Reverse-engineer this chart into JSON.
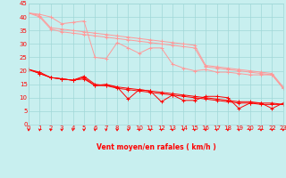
{
  "xlabel": "Vent moyen/en rafales ( km/h )",
  "x_values": [
    0,
    1,
    2,
    3,
    4,
    5,
    6,
    7,
    8,
    9,
    10,
    11,
    12,
    13,
    14,
    15,
    16,
    17,
    18,
    19,
    20,
    21,
    22,
    23
  ],
  "ylim": [
    0,
    45
  ],
  "xlim": [
    0,
    23
  ],
  "yticks": [
    0,
    5,
    10,
    15,
    20,
    25,
    30,
    35,
    40,
    45
  ],
  "background_color": "#c8efef",
  "grid_color": "#a0d8d8",
  "line_color_dark": "#ff0000",
  "line_color_light": "#ff9999",
  "series_dark": [
    [
      20.5,
      19.5,
      17.5,
      17.0,
      16.5,
      18.0,
      15.0,
      14.5,
      14.0,
      9.5,
      13.0,
      12.5,
      8.5,
      11.0,
      9.0,
      9.0,
      10.5,
      10.5,
      10.0,
      6.0,
      8.0,
      8.0,
      6.0,
      8.0
    ],
    [
      20.5,
      19.0,
      17.5,
      17.0,
      16.5,
      17.5,
      14.5,
      15.0,
      14.0,
      13.5,
      13.0,
      12.5,
      12.0,
      11.5,
      11.0,
      10.5,
      10.0,
      9.5,
      9.0,
      8.5,
      8.5,
      8.0,
      8.0,
      7.5
    ],
    [
      20.5,
      19.0,
      17.5,
      17.0,
      16.5,
      17.0,
      14.5,
      14.5,
      13.5,
      13.0,
      12.5,
      12.0,
      11.5,
      11.0,
      10.5,
      10.0,
      9.5,
      9.0,
      8.5,
      8.0,
      8.0,
      7.5,
      7.5,
      7.5
    ]
  ],
  "series_light": [
    [
      41.5,
      41.0,
      40.0,
      37.5,
      38.0,
      38.5,
      25.0,
      24.5,
      30.5,
      28.5,
      26.5,
      28.5,
      28.5,
      22.5,
      21.0,
      20.0,
      20.5,
      19.5,
      19.5,
      19.0,
      18.5,
      18.5,
      18.5,
      13.5
    ],
    [
      41.5,
      40.5,
      36.0,
      35.5,
      35.0,
      34.5,
      34.0,
      33.5,
      33.0,
      32.5,
      32.0,
      31.5,
      31.0,
      30.5,
      30.0,
      29.5,
      22.0,
      21.5,
      21.0,
      20.5,
      20.0,
      19.5,
      19.0,
      14.0
    ],
    [
      41.5,
      40.0,
      35.5,
      34.5,
      34.0,
      33.5,
      33.0,
      32.5,
      32.0,
      31.5,
      31.0,
      30.5,
      30.0,
      29.5,
      29.0,
      28.5,
      21.5,
      21.0,
      20.5,
      20.0,
      19.5,
      19.0,
      18.5,
      13.5
    ]
  ],
  "arrow_color": "#ff0000",
  "xlabel_color": "#ff0000",
  "xlabel_fontsize": 5.5,
  "tick_fontsize": 5.0
}
